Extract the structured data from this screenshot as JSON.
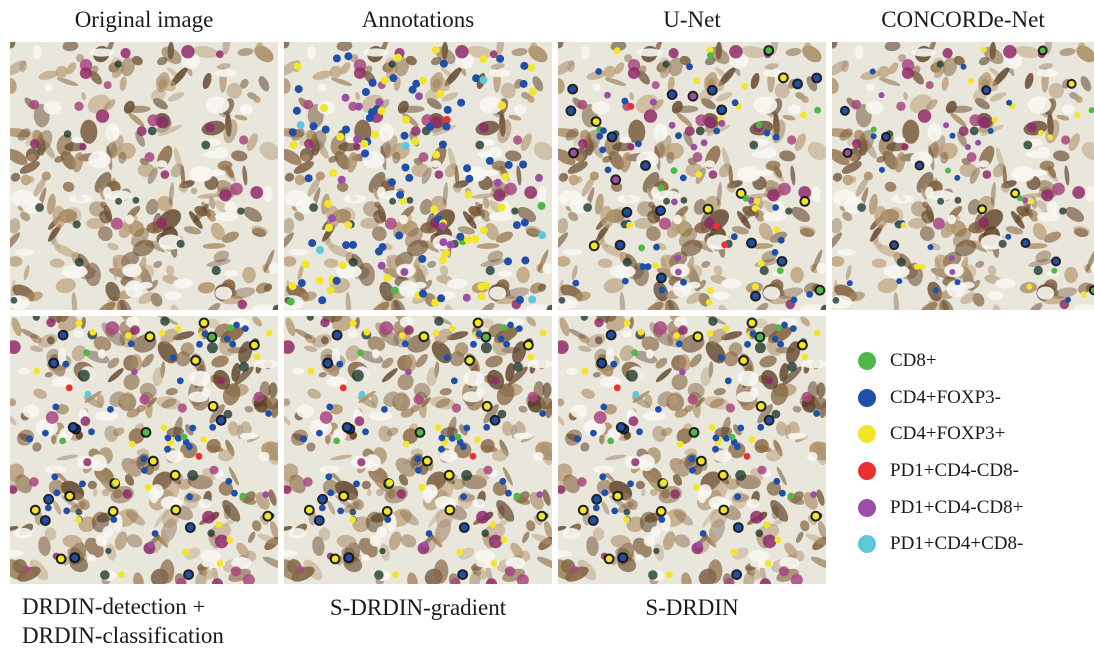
{
  "figure": {
    "panels": [
      {
        "id": "original",
        "caption": "Original image",
        "caption_position": "top",
        "seed": 1,
        "dots": "none"
      },
      {
        "id": "annotations",
        "caption": "Annotations",
        "caption_position": "top",
        "seed": 1,
        "dots": "annotations"
      },
      {
        "id": "unet",
        "caption": "U-Net",
        "caption_position": "top",
        "seed": 1,
        "dots": "prediction"
      },
      {
        "id": "concorde",
        "caption": "CONCORDe-Net",
        "caption_position": "top",
        "seed": 1,
        "dots": "sparse"
      },
      {
        "id": "drdin",
        "caption": "DRDIN-detection +\nDRDIN-classification",
        "caption_position": "bottom",
        "seed": 2,
        "dots": "prediction"
      },
      {
        "id": "sdrdin-gradient",
        "caption": "S-DRDIN-gradient",
        "caption_position": "bottom",
        "seed": 2,
        "dots": "prediction"
      },
      {
        "id": "sdrdin",
        "caption": "S-DRDIN",
        "caption_position": "bottom",
        "seed": 2,
        "dots": "prediction"
      }
    ],
    "legend": [
      {
        "label": "CD8+",
        "color": "#4fb848"
      },
      {
        "label": "CD4+FOXP3-",
        "color": "#1f4fa8"
      },
      {
        "label": "CD4+FOXP3+",
        "color": "#f2e52a"
      },
      {
        "label": "PD1+CD4-CD8-",
        "color": "#ec2f2f"
      },
      {
        "label": "PD1+CD4-CD8+",
        "color": "#9b4ea6"
      },
      {
        "label": "PD1+CD4+CD8-",
        "color": "#5ec8da"
      }
    ]
  }
}
